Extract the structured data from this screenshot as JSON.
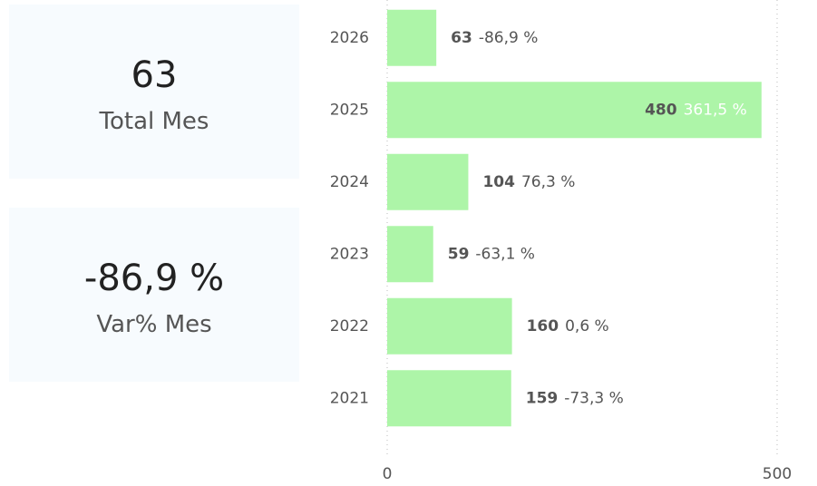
{
  "cards": [
    {
      "value": "63",
      "label": "Total Mes"
    },
    {
      "value": "-86,9 %",
      "label": "Var% Mes"
    }
  ],
  "chart_data": {
    "type": "bar",
    "orientation": "horizontal",
    "categories": [
      "2026",
      "2025",
      "2024",
      "2023",
      "2022",
      "2021"
    ],
    "values": [
      63,
      480,
      104,
      59,
      160,
      159
    ],
    "variance_labels": [
      "-86,9 %",
      "361,5 %",
      "76,3 %",
      "-63,1 %",
      "0,6 %",
      "-73,3 %"
    ],
    "color": "#adf5a8",
    "xlim": [
      0,
      500
    ],
    "xticks": [
      0,
      500
    ],
    "grid": true
  }
}
